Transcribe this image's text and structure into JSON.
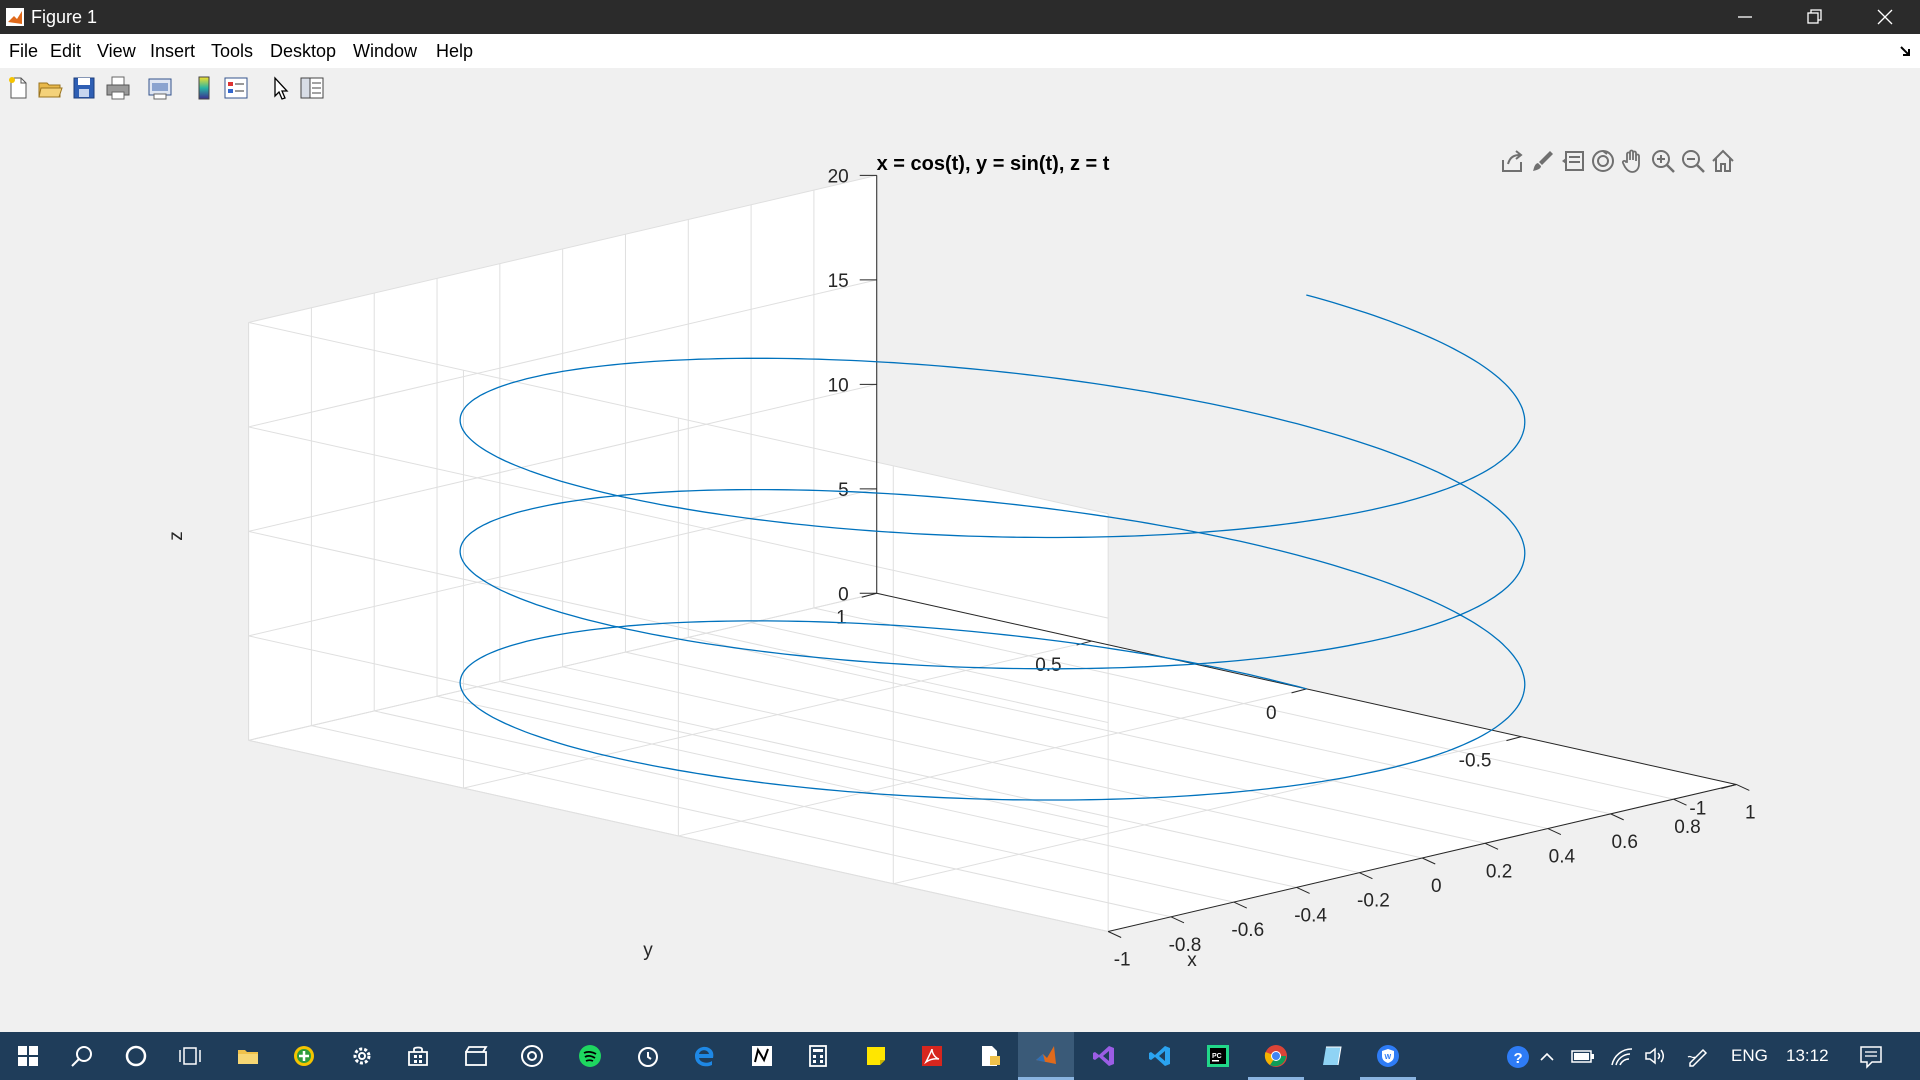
{
  "window": {
    "title": "Figure 1"
  },
  "menu": [
    "File",
    "Edit",
    "View",
    "Insert",
    "Tools",
    "Desktop",
    "Window",
    "Help"
  ],
  "toolbar_icons": [
    "new-figure-icon",
    "open-file-icon",
    "save-icon",
    "print-icon",
    "print-preview-icon",
    "colorbar-icon",
    "legend-icon",
    "select-arrow-icon",
    "property-inspector-icon"
  ],
  "axes_toolbar_icons": [
    "export-icon",
    "brush-icon",
    "data-tips-icon",
    "rotate-3d-icon",
    "pan-hand-icon",
    "zoom-in-icon",
    "zoom-out-icon",
    "home-icon"
  ],
  "chart_data": {
    "type": "line",
    "projection": "3d",
    "title": "x = cos(t), y = sin(t), z = t",
    "xlabel": "x",
    "ylabel": "y",
    "zlabel": "z",
    "xlim": [
      -1,
      1
    ],
    "ylim": [
      -1,
      1
    ],
    "zlim": [
      0,
      20
    ],
    "xticks": [
      "-1",
      "-0.8",
      "-0.6",
      "-0.4",
      "-0.2",
      "0",
      "0.2",
      "0.4",
      "0.6",
      "0.8",
      "1"
    ],
    "yticks": [
      "-1",
      "-0.5",
      "0",
      "0.5",
      "1"
    ],
    "zticks": [
      "0",
      "5",
      "10",
      "15",
      "20"
    ],
    "grid": true,
    "series": [
      {
        "x": "cos(t)",
        "y": "sin(t)",
        "z": "t",
        "t_range": [
          0,
          18.85
        ],
        "color": "#0072bd"
      }
    ]
  },
  "taskbar": {
    "icons": [
      "windows-start-icon",
      "search-icon",
      "cortana-icon",
      "task-view-icon",
      "file-explorer-icon",
      "plus-app-icon",
      "settings-icon",
      "store-icon",
      "video-editor-icon",
      "groove-icon",
      "spotify-icon",
      "alarms-icon",
      "edge-icon",
      "notepad-app-icon",
      "calculator-icon",
      "sticky-notes-icon",
      "acrobat-icon",
      "documents-icon",
      "matlab-icon",
      "visual-studio-icon",
      "vscode-icon",
      "pycharm-icon",
      "chrome-icon",
      "paint-3d-icon",
      "vpn-shield-icon"
    ],
    "tray": {
      "language": "ENG",
      "time": "13:12"
    }
  },
  "colors": {
    "titlebar": "#2b2b2b",
    "taskbar": "#1f3d5a",
    "plot_line": "#0072bd",
    "grid": "#dfdfdf"
  }
}
